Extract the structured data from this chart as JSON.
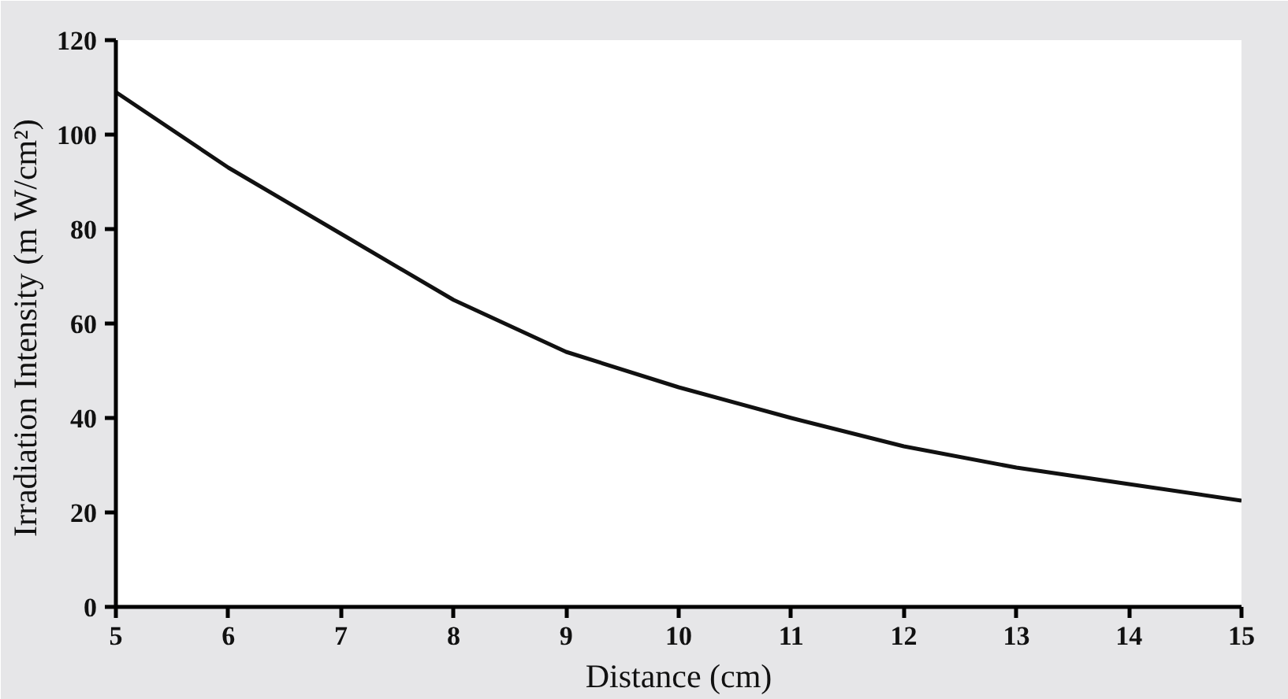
{
  "chart_data": {
    "type": "line",
    "xlabel": "Distance (cm)",
    "ylabel": "Irradiation Intensity  (m W/cm²)",
    "x": [
      5,
      6,
      7,
      8,
      9,
      10,
      11,
      12,
      13,
      14,
      15
    ],
    "series": [
      {
        "color": "#111111",
        "values": [
          109,
          93,
          79,
          65,
          54,
          46.5,
          40,
          34,
          29.5,
          26,
          22.5
        ]
      }
    ],
    "xlim": [
      5,
      15
    ],
    "ylim": [
      0,
      120
    ],
    "xticks": [
      5,
      6,
      7,
      8,
      9,
      10,
      11,
      12,
      13,
      14,
      15
    ],
    "yticks": [
      0,
      20,
      40,
      60,
      80,
      100,
      120
    ],
    "grid": false,
    "marker": "none",
    "line_style": "solid"
  }
}
